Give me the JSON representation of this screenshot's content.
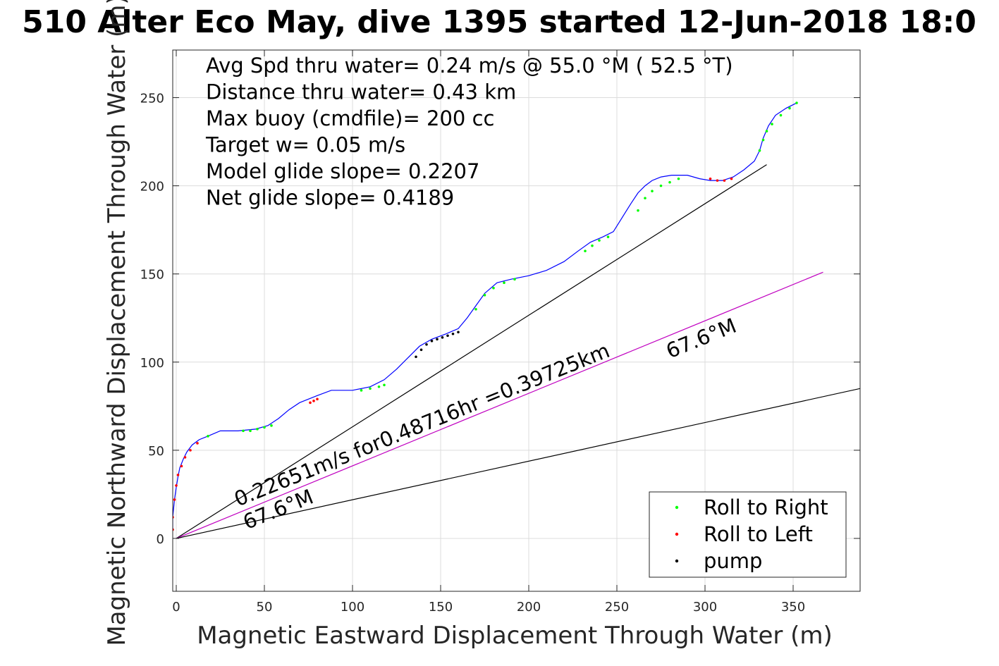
{
  "chart_data": {
    "type": "line",
    "title": "510 Alter Eco May, dive 1395 started 12-Jun-2018 18:0",
    "xlabel": "Magnetic Eastward Displacement Through Water (m)",
    "ylabel": "Magnetic Northward Displacement Through Water (m)",
    "xlim": [
      -2,
      388
    ],
    "ylim": [
      -30,
      277
    ],
    "xticks": [
      0,
      50,
      100,
      150,
      200,
      250,
      300,
      350
    ],
    "yticks": [
      0,
      50,
      100,
      150,
      200,
      250
    ],
    "grid": true,
    "legend_position": "bottom-right",
    "stats_lines": [
      "Avg Spd thru water=  0.24 m/s @  55.0 °M ( 52.5 °T)",
      "Distance thru water=  0.43 km",
      "Max buoy (cmdfile)= 200 cc",
      "Target w= 0.05 m/s",
      "Model glide slope= 0.2207",
      "Net glide slope= 0.4189"
    ],
    "annotations": [
      {
        "text": "0.22651m/s for0.48716hr =0.39725km",
        "x": 35,
        "y": 18,
        "angle_deg": 22
      },
      {
        "text": "67.6°M",
        "x": 40,
        "y": 5,
        "angle_deg": 22
      },
      {
        "text": "67.6°M",
        "x": 280,
        "y": 102,
        "angle_deg": 22
      }
    ],
    "reference_lines": [
      {
        "name": "net-track",
        "color": "#000000",
        "x": [
          0,
          335
        ],
        "y": [
          0,
          212
        ]
      },
      {
        "name": "current-direction",
        "color": "#c000c0",
        "x": [
          0,
          367
        ],
        "y": [
          0,
          151
        ]
      },
      {
        "name": "heading-line",
        "color": "#000000",
        "x": [
          0,
          388
        ],
        "y": [
          0,
          85
        ]
      }
    ],
    "series": [
      {
        "name": "track",
        "color": "#0000ff",
        "x": [
          -2,
          -2,
          -1,
          0,
          1,
          2,
          4,
          6,
          9,
          13,
          18,
          25,
          35,
          45,
          52,
          58,
          64,
          70,
          75,
          80,
          88,
          100,
          110,
          118,
          125,
          132,
          138,
          145,
          153,
          160,
          165,
          170,
          175,
          182,
          190,
          200,
          210,
          220,
          228,
          235,
          242,
          248,
          253,
          258,
          262,
          266,
          270,
          275,
          281,
          290,
          297,
          303,
          310,
          316,
          322,
          328,
          331,
          333,
          336,
          340,
          346,
          352
        ],
        "y": [
          5,
          12,
          22,
          29,
          35,
          40,
          45,
          49,
          53,
          56,
          58,
          61,
          61,
          62,
          64,
          68,
          73,
          77,
          79,
          81,
          84,
          84,
          86,
          90,
          96,
          103,
          109,
          113,
          116,
          119,
          125,
          132,
          139,
          145,
          147,
          149,
          152,
          157,
          163,
          168,
          171,
          174,
          182,
          190,
          196,
          200,
          203,
          205,
          206,
          206,
          204,
          203,
          203,
          205,
          209,
          214,
          220,
          227,
          234,
          240,
          244,
          247
        ]
      }
    ],
    "markers": [
      {
        "name": "Roll to Right",
        "color": "#00ff00",
        "x": [
          18,
          38,
          42,
          46,
          50,
          54,
          105,
          110,
          115,
          118,
          170,
          175,
          180,
          186,
          192,
          232,
          236,
          240,
          245,
          262,
          266,
          270,
          275,
          280,
          285,
          331,
          333,
          335,
          338,
          343,
          348,
          352
        ],
        "y": [
          58,
          61,
          61,
          62,
          63,
          64,
          84,
          85,
          86,
          87,
          130,
          138,
          142,
          145,
          147,
          163,
          166,
          169,
          171,
          186,
          193,
          197,
          200,
          202,
          204,
          220,
          226,
          231,
          235,
          240,
          244,
          247
        ]
      },
      {
        "name": "Roll to Left",
        "color": "#ff0000",
        "x": [
          -2,
          -2,
          -1,
          0,
          1,
          3,
          5,
          8,
          12,
          76,
          78,
          80,
          303,
          307,
          311,
          315
        ],
        "y": [
          5,
          12,
          22,
          30,
          36,
          41,
          46,
          50,
          54,
          77,
          78,
          79,
          204,
          203,
          203,
          204
        ]
      },
      {
        "name": "pump",
        "color": "#000000",
        "x": [
          136,
          139,
          142,
          145,
          148,
          151,
          154,
          157,
          160
        ],
        "y": [
          103,
          107,
          110,
          112,
          113,
          114,
          115,
          116,
          117
        ]
      }
    ]
  }
}
